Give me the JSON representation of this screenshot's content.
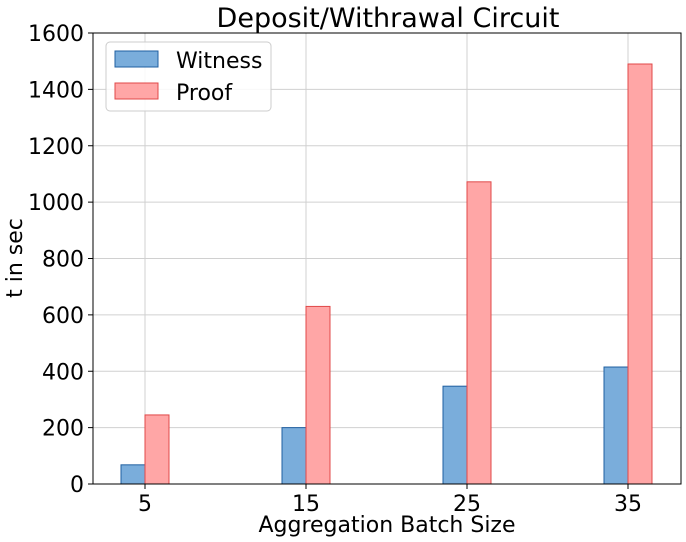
{
  "chart_data": {
    "type": "bar",
    "title": "Deposit/Withrawal Circuit",
    "xlabel": "Aggregation Batch Size",
    "ylabel": "t in sec",
    "categories": [
      "5",
      "15",
      "25",
      "35"
    ],
    "ylim": [
      0,
      1600
    ],
    "yticks": [
      0,
      200,
      400,
      600,
      800,
      1000,
      1200,
      1400,
      1600
    ],
    "grid": true,
    "legend_position": "top-left",
    "series": [
      {
        "name": "Witness",
        "values": [
          68,
          200,
          347,
          415
        ],
        "fill": "#7aaddb",
        "stroke": "#1f5fa0"
      },
      {
        "name": "Proof",
        "values": [
          245,
          630,
          1072,
          1490
        ],
        "fill": "#ffa6a6",
        "stroke": "#e04848"
      }
    ]
  }
}
